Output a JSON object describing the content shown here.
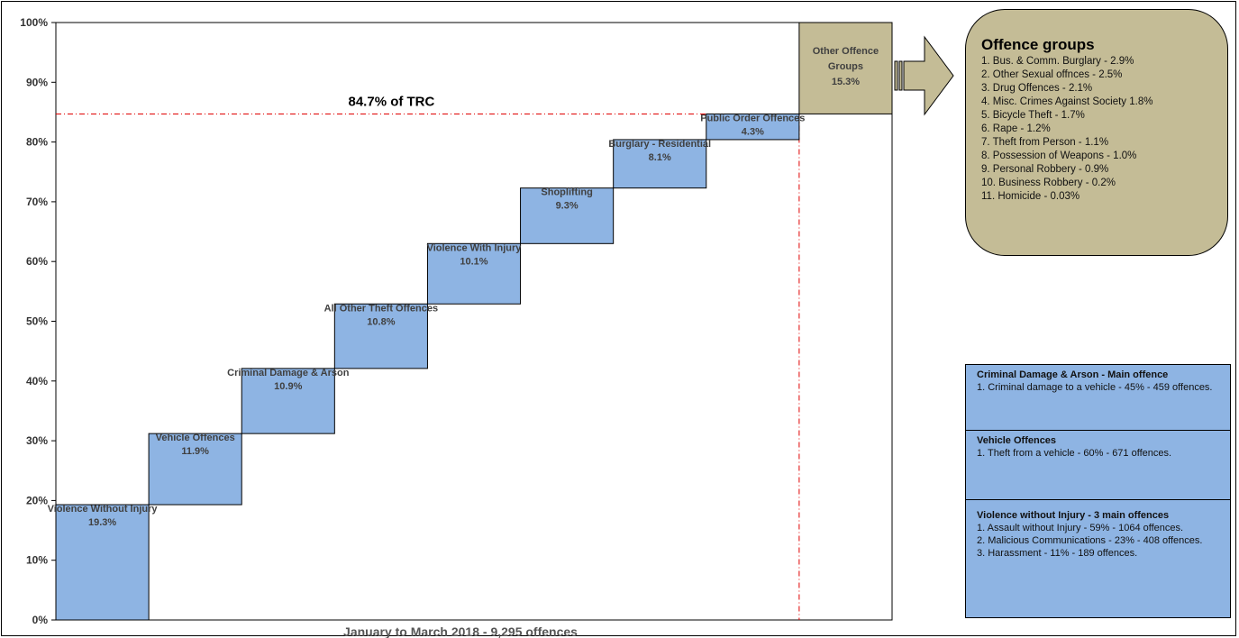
{
  "chart_data": {
    "type": "bar",
    "subtype": "waterfall",
    "categories": [
      "Violence Without Injury",
      "Vehicle Offences",
      "Criminal Damage & Arson",
      "All Other Theft Offences",
      "Violence With Injury",
      "Shoplifting",
      "Burglary - Residential",
      "Public Order Offences",
      "Other Offence Groups"
    ],
    "values": [
      19.3,
      11.9,
      10.9,
      10.8,
      10.1,
      9.3,
      8.1,
      4.3,
      15.3
    ],
    "value_labels": [
      "19.3%",
      "11.9%",
      "10.9%",
      "10.8%",
      "10.1%",
      "9.3%",
      "8.1%",
      "4.3%",
      "15.3%"
    ],
    "y_ticks": [
      "0%",
      "10%",
      "20%",
      "30%",
      "40%",
      "50%",
      "60%",
      "70%",
      "80%",
      "90%",
      "100%"
    ],
    "ylim": [
      0,
      100
    ],
    "xlabel": "January to March 2018  - 9,295 offences",
    "reference_line": {
      "value": 84.7,
      "label": "84.7% of TRC"
    },
    "colors": {
      "bar": "#8eb4e3",
      "other_bar": "#c4bc96",
      "reference": "#e00000",
      "bar_edge": "#000000"
    }
  },
  "offence_groups": {
    "title": "Offence groups",
    "items": [
      "1.  Bus. & Comm. Burglary - 2.9%",
      "2.  Other Sexual offnces - 2.5%",
      "3.  Drug Offences  - 2.1%",
      "4.  Misc. Crimes Against Society 1.8%",
      "5.  Bicycle Theft - 1.7%",
      "6.  Rape - 1.2%",
      "7.  Theft from Person  - 1.1%",
      "8.  Possession of Weapons - 1.0%",
      "9.  Personal Robbery -  0.9%",
      "10. Business Robbery - 0.2%",
      "11. Homicide - 0.03%"
    ]
  },
  "info_panels": [
    {
      "title": "Criminal Damage & Arson - Main offence",
      "lines": [
        "1. Criminal damage to a vehicle - 45% - 459 offences."
      ]
    },
    {
      "title": "Vehicle Offences",
      "lines": [
        "1.  Theft from a vehicle - 60% - 671 offences."
      ]
    },
    {
      "title": "Violence without Injury - 3 main offences",
      "lines": [
        "1. Assault without Injury - 59% - 1064 offences.",
        "2. Malicious Communications - 23% - 408 offences.",
        "3. Harassment - 11% - 189 offences."
      ]
    }
  ]
}
